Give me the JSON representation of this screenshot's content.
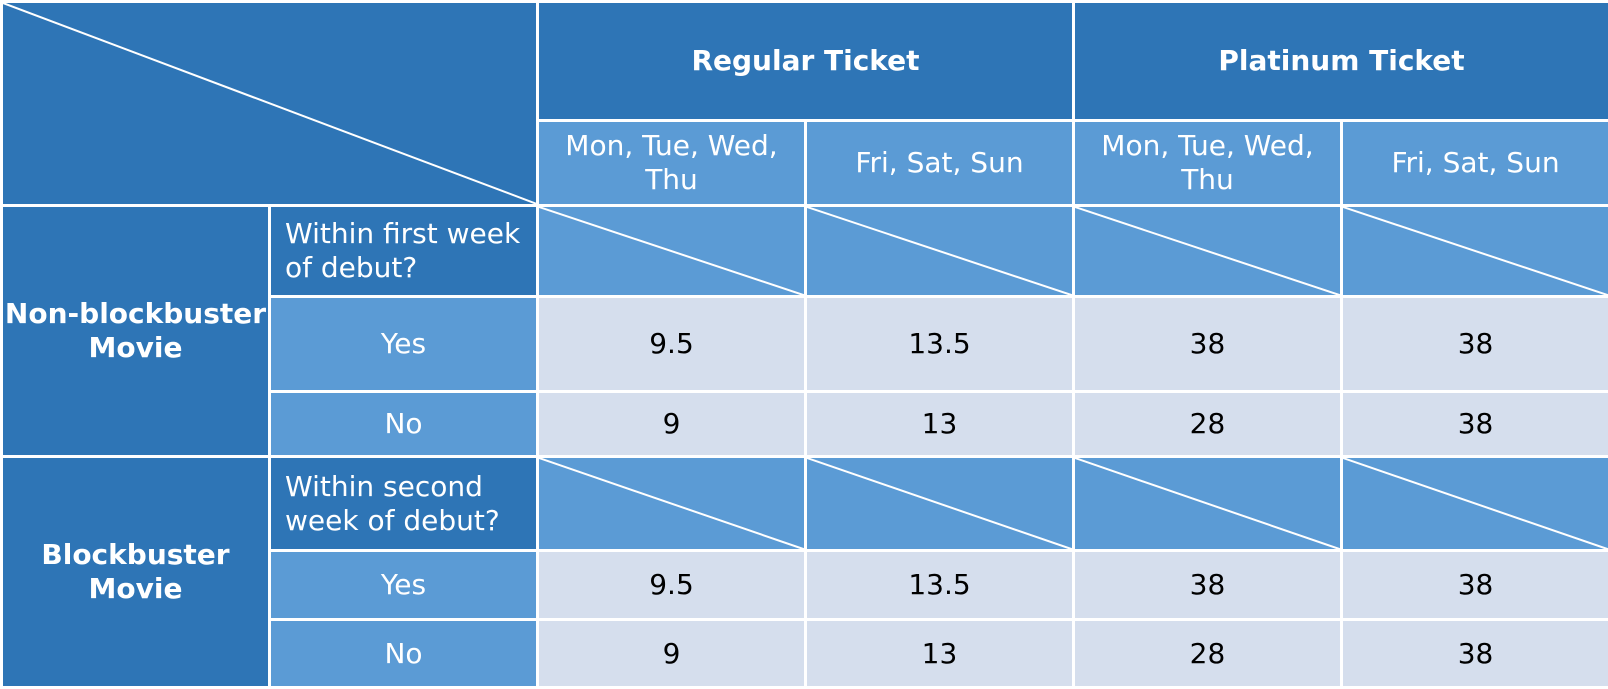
{
  "header": {
    "groups": [
      "Regular Ticket",
      "Platinum Ticket"
    ],
    "day_columns": [
      "Mon, Tue, Wed, Thu",
      "Fri, Sat, Sun",
      "Mon, Tue, Wed, Thu",
      "Fri, Sat, Sun"
    ]
  },
  "sections": [
    {
      "label": "Non-blockbuster Movie",
      "question": "Within first week of debut?",
      "rows": [
        {
          "label": "Yes",
          "values": [
            "9.5",
            "13.5",
            "38",
            "38"
          ]
        },
        {
          "label": "No",
          "values": [
            "9",
            "13",
            "28",
            "38"
          ]
        }
      ]
    },
    {
      "label": "Blockbuster Movie",
      "question": "Within second week of debut?",
      "rows": [
        {
          "label": "Yes",
          "values": [
            "9.5",
            "13.5",
            "38",
            "38"
          ]
        },
        {
          "label": "No",
          "values": [
            "9",
            "13",
            "28",
            "38"
          ]
        }
      ]
    }
  ],
  "colors": {
    "header_dark": "#2e75b6",
    "header_mid": "#5b9bd5",
    "cell_light": "#d5deed",
    "grid_line": "#ffffff"
  }
}
